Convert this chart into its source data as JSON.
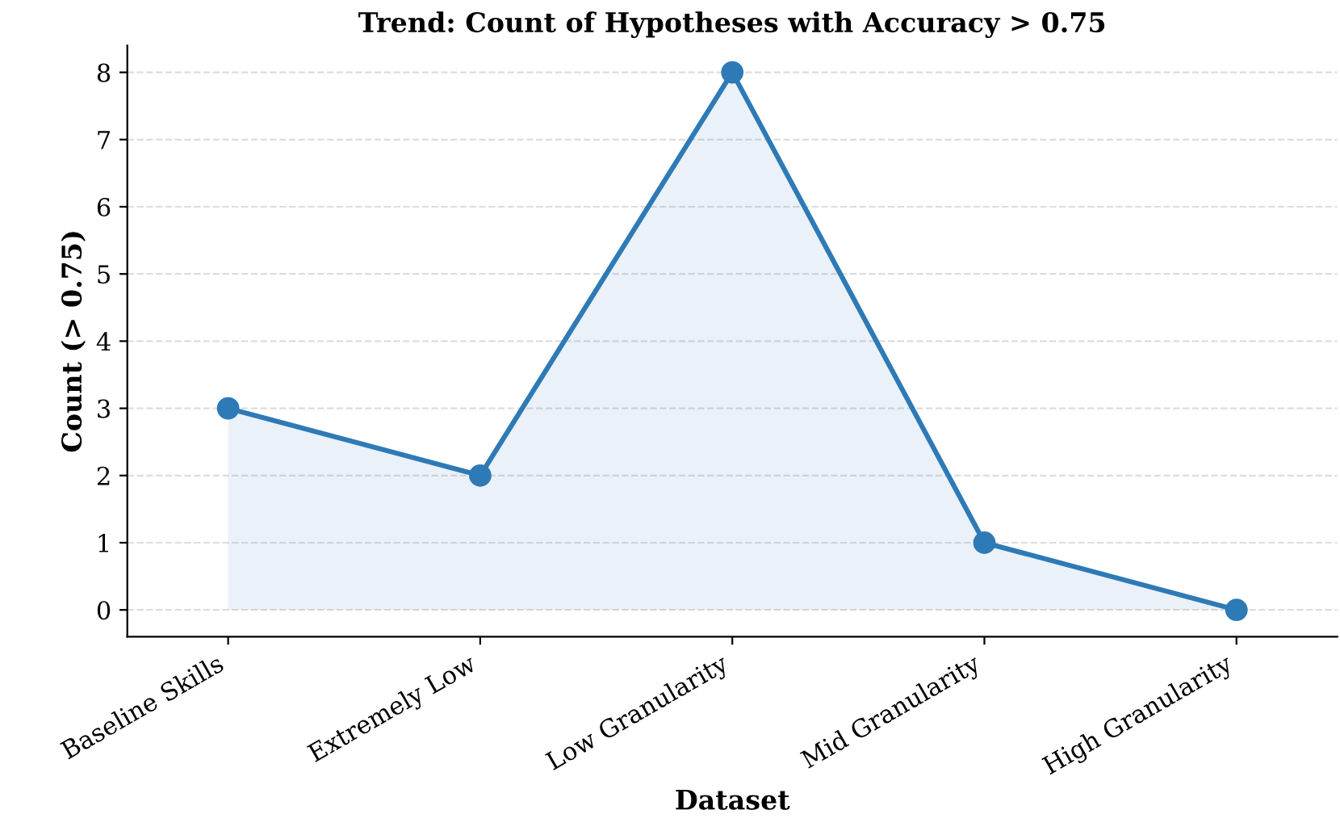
{
  "chart_data": {
    "type": "area",
    "title": "Trend: Count of Hypotheses with Accuracy > 0.75",
    "xlabel": "Dataset",
    "ylabel": "Count (> 0.75)",
    "categories": [
      "Baseline Skills",
      "Extremely Low",
      "Low Granularity",
      "Mid Granularity",
      "High Granularity"
    ],
    "series": [
      {
        "color": "#2e7ab6",
        "values": [
          3,
          2,
          8,
          1,
          0
        ]
      }
    ],
    "ylim": [
      -0.4,
      8.4
    ],
    "yticks": [
      0,
      1,
      2,
      3,
      4,
      5,
      6,
      7,
      8
    ],
    "grid": "y",
    "marker": "circle",
    "line_style": "solid"
  }
}
